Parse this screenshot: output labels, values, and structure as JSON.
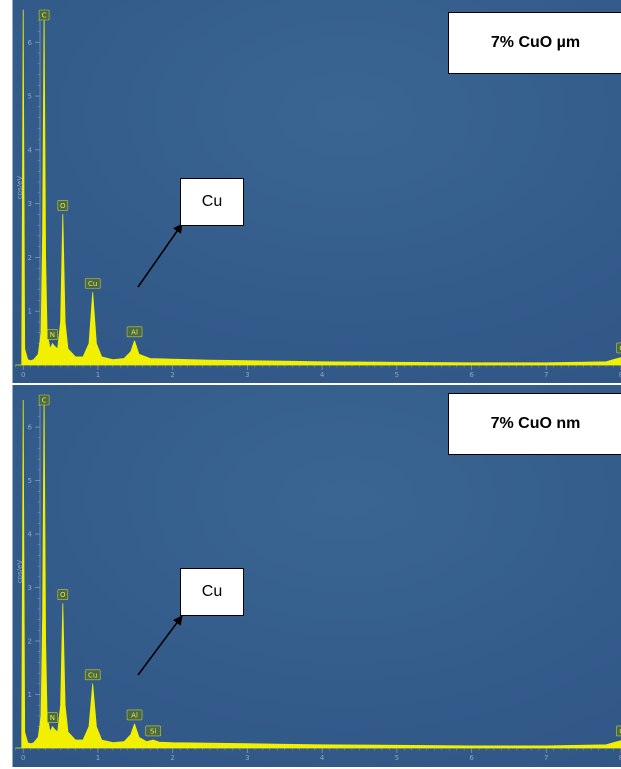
{
  "colors": {
    "background": "#2f5585",
    "spectrum": "#f0f000",
    "axis": "#7f96b8"
  },
  "chart_data": [
    {
      "type": "area",
      "sample_label": "7% CuO µm",
      "callout_label": "Cu",
      "ylabel": "cps/eV",
      "xlim": [
        -0.15,
        8.0
      ],
      "ylim": [
        0,
        6.6
      ],
      "x_ticks": [
        "0",
        "1",
        "2",
        "3",
        "4",
        "5",
        "6",
        "7",
        "8"
      ],
      "y_ticks": [
        "1",
        "2",
        "3",
        "4",
        "5",
        "6"
      ],
      "peaks": [
        {
          "label": "C",
          "x": 0.28,
          "y": 6.6
        },
        {
          "label": "N",
          "x": 0.39,
          "y": 0.4
        },
        {
          "label": "O",
          "x": 0.53,
          "y": 2.8
        },
        {
          "label": "Cu",
          "x": 0.93,
          "y": 1.35
        },
        {
          "label": "Al",
          "x": 1.49,
          "y": 0.45
        },
        {
          "label": "Cu",
          "x": 8.04,
          "y": 0.15
        }
      ],
      "series": [
        {
          "x": [
            -0.1,
            -0.02,
            0.0,
            0.02,
            0.06,
            0.1,
            0.14,
            0.2,
            0.24,
            0.26,
            0.28,
            0.3,
            0.32,
            0.36,
            0.39,
            0.42,
            0.46,
            0.5,
            0.53,
            0.56,
            0.6,
            0.7,
            0.8,
            0.88,
            0.93,
            0.98,
            1.05,
            1.2,
            1.35,
            1.44,
            1.49,
            1.55,
            1.7,
            2.0,
            2.5,
            3.0,
            3.5,
            4.0,
            5.0,
            6.0,
            7.0,
            7.8,
            7.95,
            8.04
          ],
          "y": [
            0.0,
            0.0,
            6.6,
            0.3,
            0.1,
            0.08,
            0.1,
            0.2,
            0.6,
            2.5,
            6.6,
            2.0,
            0.6,
            0.3,
            0.4,
            0.35,
            0.3,
            0.8,
            2.8,
            0.8,
            0.3,
            0.15,
            0.15,
            0.4,
            1.35,
            0.4,
            0.15,
            0.1,
            0.12,
            0.25,
            0.45,
            0.2,
            0.12,
            0.11,
            0.09,
            0.08,
            0.07,
            0.06,
            0.05,
            0.04,
            0.04,
            0.06,
            0.12,
            0.15
          ]
        }
      ]
    },
    {
      "type": "area",
      "sample_label": "7% CuO nm",
      "callout_label": "Cu",
      "ylabel": "cps/eV",
      "xlim": [
        -0.15,
        8.0
      ],
      "ylim": [
        0,
        6.6
      ],
      "x_ticks": [
        "0",
        "1",
        "2",
        "3",
        "4",
        "5",
        "6",
        "7",
        "8"
      ],
      "y_ticks": [
        "1",
        "2",
        "3",
        "4",
        "5",
        "6"
      ],
      "peaks": [
        {
          "label": "C",
          "x": 0.28,
          "y": 6.6
        },
        {
          "label": "N",
          "x": 0.39,
          "y": 0.4
        },
        {
          "label": "O",
          "x": 0.53,
          "y": 2.7
        },
        {
          "label": "Cu",
          "x": 0.93,
          "y": 1.2
        },
        {
          "label": "Al",
          "x": 1.49,
          "y": 0.45
        },
        {
          "label": "Si",
          "x": 1.74,
          "y": 0.15
        },
        {
          "label": "Cu",
          "x": 8.04,
          "y": 0.15
        }
      ],
      "series": [
        {
          "x": [
            -0.1,
            -0.02,
            0.0,
            0.02,
            0.06,
            0.1,
            0.14,
            0.2,
            0.24,
            0.26,
            0.28,
            0.3,
            0.32,
            0.36,
            0.39,
            0.42,
            0.46,
            0.5,
            0.53,
            0.56,
            0.6,
            0.7,
            0.8,
            0.88,
            0.93,
            0.98,
            1.05,
            1.2,
            1.35,
            1.44,
            1.49,
            1.55,
            1.65,
            1.74,
            1.82,
            2.0,
            2.5,
            3.0,
            3.5,
            4.0,
            5.0,
            6.0,
            7.0,
            7.8,
            7.95,
            8.04
          ],
          "y": [
            0.0,
            0.0,
            6.5,
            0.3,
            0.1,
            0.08,
            0.1,
            0.2,
            0.6,
            2.5,
            6.6,
            2.0,
            0.6,
            0.3,
            0.4,
            0.35,
            0.3,
            0.8,
            2.7,
            0.8,
            0.3,
            0.15,
            0.15,
            0.4,
            1.2,
            0.4,
            0.15,
            0.1,
            0.12,
            0.25,
            0.45,
            0.2,
            0.12,
            0.15,
            0.11,
            0.1,
            0.09,
            0.08,
            0.07,
            0.06,
            0.05,
            0.04,
            0.04,
            0.06,
            0.12,
            0.15
          ]
        }
      ]
    }
  ]
}
